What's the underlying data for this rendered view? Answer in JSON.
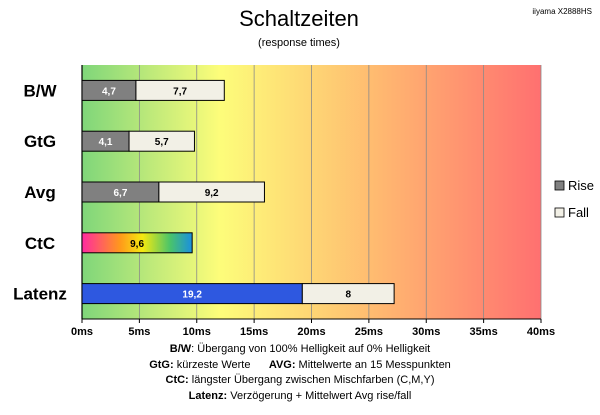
{
  "chart_data": {
    "type": "bar",
    "stacked": true,
    "orientation": "horizontal",
    "title": "Schaltzeiten",
    "subtitle": "(response times)",
    "model": "iiyama X2888HS",
    "categories": [
      "B/W",
      "GtG",
      "Avg",
      "CtC",
      "Latenz"
    ],
    "series": [
      {
        "name": "Rise",
        "values": [
          4.7,
          4.1,
          6.7,
          null,
          null
        ]
      },
      {
        "name": "Fall",
        "values": [
          7.7,
          5.7,
          9.2,
          null,
          8
        ]
      }
    ],
    "ctc_value": 9.6,
    "latenz_avg": 19.2,
    "x_ticks": [
      "0ms",
      "5ms",
      "10ms",
      "15ms",
      "20ms",
      "25ms",
      "30ms",
      "35ms",
      "40ms"
    ],
    "xlim": [
      0,
      40
    ],
    "legend_position": "right",
    "colors": {
      "rise": "#808080",
      "fall": "#f2f0e6",
      "latenz": "#2e58e0",
      "background_gradient": [
        "#7fd67a",
        "#fdfd7a",
        "#ff7070"
      ]
    }
  },
  "legend": {
    "rise_label": "Rise",
    "fall_label": "Fall"
  },
  "notes": [
    {
      "key": "B/W",
      "text": ":  Übergang von 100% Helligkeit auf 0% Helligkeit"
    },
    {
      "key": "GtG:",
      "text": " kürzeste  Werte",
      "key2": "AVG:",
      "text2": " Mittelwerte  an 15 Messpunkten"
    },
    {
      "key": "CtC:",
      "text": " längster Übergang  zwischen Mischfarben (C,M,Y)"
    },
    {
      "key": "Latenz:",
      "text": " Verzögerung  + Mittelwert  Avg rise/fall"
    }
  ],
  "value_labels": {
    "bw_rise": "4,7",
    "bw_fall": "7,7",
    "gtg_rise": "4,1",
    "gtg_fall": "5,7",
    "avg_rise": "6,7",
    "avg_fall": "9,2",
    "ctc": "9,6",
    "latenz_avg": "19,2",
    "latenz_fall": "8"
  }
}
